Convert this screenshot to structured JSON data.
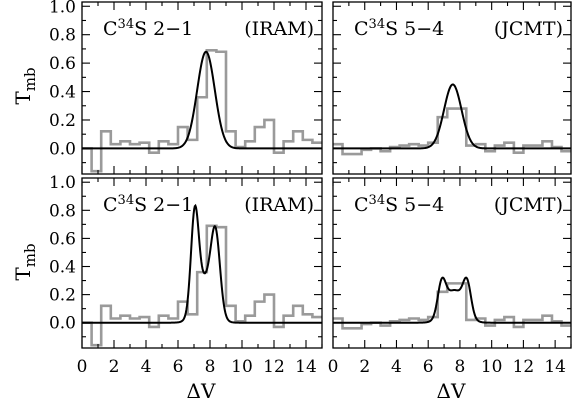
{
  "chart_data": {
    "type": "line",
    "shared_xlabel": "ΔV",
    "shared_ylabel": "T",
    "shared_ylabel_sub": "mb",
    "xlim": [
      0,
      15
    ],
    "ylim": [
      -0.18,
      1.03
    ],
    "xticks": [
      0,
      2,
      4,
      6,
      8,
      10,
      12,
      14
    ],
    "yticks": [
      0.0,
      0.2,
      0.4,
      0.6,
      0.8,
      1.0
    ],
    "xticklabels": [
      "0",
      "2",
      "4",
      "6",
      "8",
      "10",
      "12",
      "14"
    ],
    "yticklabels": [
      "0.0",
      "0.2",
      "0.4",
      "0.6",
      "0.8",
      "1.0"
    ],
    "observed_color": "#9a9a9a",
    "model_color": "#000000",
    "panels": [
      {
        "id": "top-left",
        "title": {
          "mol": "C",
          "iso": "34",
          "rest": "S 2−1",
          "tel": "(IRAM)"
        },
        "observed": {
          "edges": [
            0,
            0.6,
            1.2,
            1.8,
            2.4,
            3.0,
            3.6,
            4.2,
            4.8,
            5.4,
            6.0,
            6.6,
            7.2,
            7.8,
            8.4,
            9.0,
            9.6,
            10.2,
            10.8,
            11.4,
            12.0,
            12.6,
            13.2,
            13.8,
            14.4,
            15.0
          ],
          "values": [
            0.0,
            -0.16,
            0.12,
            0.03,
            0.05,
            0.03,
            0.04,
            -0.03,
            0.05,
            0.03,
            0.15,
            0.06,
            0.36,
            0.69,
            0.68,
            0.12,
            0.01,
            0.05,
            0.15,
            0.2,
            -0.03,
            0.05,
            0.12,
            0.06,
            0.04
          ]
        },
        "model": {
          "kind": "gaussian",
          "amp": 0.68,
          "center": 7.75,
          "sigma": 0.55
        }
      },
      {
        "id": "top-right",
        "title": {
          "mol": "C",
          "iso": "34",
          "rest": "S 5−4",
          "tel": "(JCMT)"
        },
        "observed": {
          "edges": [
            0,
            0.6,
            1.2,
            1.8,
            2.4,
            3.0,
            3.6,
            4.2,
            4.8,
            5.4,
            6.0,
            6.6,
            7.2,
            7.8,
            8.4,
            9.0,
            9.6,
            10.2,
            10.8,
            11.4,
            12.0,
            12.6,
            13.2,
            13.8,
            14.4,
            15.0
          ],
          "values": [
            0.03,
            -0.04,
            -0.04,
            -0.01,
            0.0,
            -0.02,
            0.01,
            0.02,
            0.03,
            0.02,
            0.04,
            0.22,
            0.28,
            0.28,
            0.02,
            0.03,
            -0.02,
            0.02,
            0.04,
            -0.03,
            0.02,
            0.02,
            0.05,
            0.01,
            -0.02
          ]
        },
        "model": {
          "kind": "gaussian",
          "amp": 0.45,
          "center": 7.55,
          "sigma": 0.55
        }
      },
      {
        "id": "bottom-left",
        "title": {
          "mol": "C",
          "iso": "34",
          "rest": "S 2−1",
          "tel": "(IRAM)"
        },
        "observed": {
          "edges": [
            0,
            0.6,
            1.2,
            1.8,
            2.4,
            3.0,
            3.6,
            4.2,
            4.8,
            5.4,
            6.0,
            6.6,
            7.2,
            7.8,
            8.4,
            9.0,
            9.6,
            10.2,
            10.8,
            11.4,
            12.0,
            12.6,
            13.2,
            13.8,
            14.4,
            15.0
          ],
          "values": [
            0.0,
            -0.16,
            0.12,
            0.03,
            0.05,
            0.03,
            0.04,
            -0.03,
            0.05,
            0.03,
            0.15,
            0.06,
            0.36,
            0.69,
            0.68,
            0.12,
            0.01,
            0.05,
            0.15,
            0.2,
            -0.03,
            0.05,
            0.12,
            0.06,
            0.04
          ]
        },
        "model": {
          "kind": "double",
          "components": [
            {
              "amp": 0.68,
              "center": 7.05,
              "sigma": 0.24
            },
            {
              "amp": 0.53,
              "center": 8.35,
              "sigma": 0.28
            },
            {
              "amp": 0.3,
              "center": 7.7,
              "sigma": 0.55
            }
          ]
        }
      },
      {
        "id": "bottom-right",
        "title": {
          "mol": "C",
          "iso": "34",
          "rest": "S 5−4",
          "tel": "(JCMT)"
        },
        "observed": {
          "edges": [
            0,
            0.6,
            1.2,
            1.8,
            2.4,
            3.0,
            3.6,
            4.2,
            4.8,
            5.4,
            6.0,
            6.6,
            7.2,
            7.8,
            8.4,
            9.0,
            9.6,
            10.2,
            10.8,
            11.4,
            12.0,
            12.6,
            13.2,
            13.8,
            14.4,
            15.0
          ],
          "values": [
            0.03,
            -0.04,
            -0.04,
            -0.01,
            0.0,
            -0.02,
            0.01,
            0.02,
            0.03,
            0.02,
            0.04,
            0.22,
            0.28,
            0.28,
            0.02,
            0.03,
            -0.02,
            0.02,
            0.04,
            -0.03,
            0.02,
            0.02,
            0.05,
            0.01,
            -0.02
          ]
        },
        "model": {
          "kind": "double",
          "components": [
            {
              "amp": 0.22,
              "center": 6.85,
              "sigma": 0.25
            },
            {
              "amp": 0.22,
              "center": 8.45,
              "sigma": 0.25
            },
            {
              "amp": 0.23,
              "center": 7.65,
              "sigma": 0.6
            }
          ]
        }
      }
    ]
  }
}
